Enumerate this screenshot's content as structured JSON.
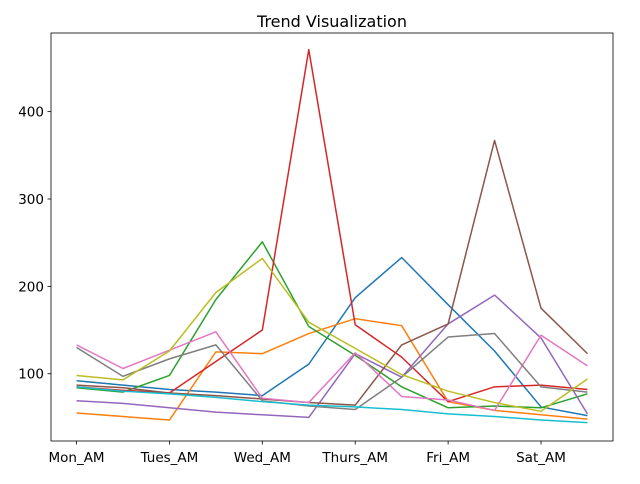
{
  "chart_data": {
    "type": "line",
    "title": "Trend Visualization",
    "xlabel": "",
    "ylabel": "",
    "x": [
      0,
      1,
      2,
      3,
      4,
      5,
      6,
      7,
      8,
      9,
      10,
      11
    ],
    "x_tick_labels": [
      {
        "x": 0,
        "label": "Mon_AM"
      },
      {
        "x": 2,
        "label": "Tues_AM"
      },
      {
        "x": 4,
        "label": "Wed_AM"
      },
      {
        "x": 6,
        "label": "Thurs_AM"
      },
      {
        "x": 8,
        "label": "Fri_AM"
      },
      {
        "x": 10,
        "label": "Sat_AM"
      }
    ],
    "xlim": [
      -0.55,
      11.55
    ],
    "ylim": [
      23,
      490
    ],
    "y_ticks": [
      100,
      200,
      300,
      400
    ],
    "y_tick_labels": [
      "100",
      "200",
      "300",
      "400"
    ],
    "grid": false,
    "legend": "none",
    "series": [
      {
        "color": "#1f77b4",
        "values": [
          92,
          87,
          82,
          79,
          75,
          111,
          187,
          233,
          179,
          126,
          62,
          52
        ]
      },
      {
        "color": "#ff7f0e",
        "values": [
          55,
          51,
          47,
          125,
          123,
          146,
          163,
          155,
          68,
          58,
          53,
          48
        ]
      },
      {
        "color": "#2ca02c",
        "values": [
          84,
          79,
          98,
          185,
          251,
          154,
          121,
          85,
          61,
          63,
          61,
          77
        ]
      },
      {
        "color": "#d62728",
        "values": [
          85,
          81,
          78,
          114,
          150,
          471,
          156,
          119,
          68,
          85,
          87,
          82
        ]
      },
      {
        "color": "#9467bd",
        "values": [
          69,
          66,
          61,
          56,
          53,
          50,
          123,
          96,
          157,
          190,
          141,
          54
        ]
      },
      {
        "color": "#8c564b",
        "values": [
          87,
          84,
          78,
          75,
          71,
          67,
          64,
          133,
          157,
          367,
          175,
          123
        ]
      },
      {
        "color": "#e377c2",
        "values": [
          133,
          106,
          127,
          148,
          72,
          67,
          124,
          74,
          70,
          58,
          144,
          109
        ]
      },
      {
        "color": "#7f7f7f",
        "values": [
          130,
          97,
          117,
          133,
          69,
          63,
          59,
          96,
          142,
          146,
          85,
          79
        ]
      },
      {
        "color": "#bcbd22",
        "values": [
          98,
          93,
          126,
          193,
          232,
          159,
          129,
          99,
          80,
          67,
          57,
          94
        ]
      },
      {
        "color": "#17becf",
        "values": [
          85,
          80,
          77,
          73,
          68,
          64,
          62,
          59,
          54,
          51,
          47,
          44
        ]
      }
    ]
  }
}
